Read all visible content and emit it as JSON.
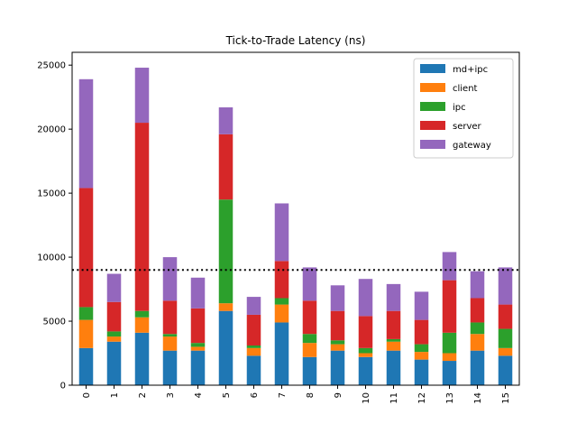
{
  "chart_data": {
    "type": "bar",
    "stacked": true,
    "title": "Tick-to-Trade Latency (ns)",
    "xlabel": "",
    "ylabel": "",
    "categories": [
      "0",
      "1",
      "2",
      "3",
      "4",
      "5",
      "6",
      "7",
      "8",
      "9",
      "10",
      "11",
      "12",
      "13",
      "14",
      "15"
    ],
    "ylim": [
      0,
      26000
    ],
    "yticks": [
      0,
      5000,
      10000,
      15000,
      20000,
      25000
    ],
    "grid": false,
    "legend_position": "top-right",
    "threshold": 9000,
    "series": [
      {
        "name": "md+ipc",
        "color": "#1f77b4",
        "values": [
          2900,
          3400,
          4100,
          2700,
          2700,
          5800,
          2300,
          4900,
          2200,
          2700,
          2200,
          2700,
          2000,
          1900,
          2700,
          2300
        ]
      },
      {
        "name": "client",
        "color": "#ff7f0e",
        "values": [
          2200,
          400,
          1200,
          1100,
          300,
          600,
          600,
          1400,
          1100,
          500,
          300,
          700,
          600,
          600,
          1300,
          600
        ]
      },
      {
        "name": "ipc",
        "color": "#2ca02c",
        "values": [
          1000,
          400,
          500,
          200,
          300,
          8100,
          200,
          500,
          700,
          300,
          400,
          200,
          600,
          1600,
          900,
          1500
        ]
      },
      {
        "name": "server",
        "color": "#d62728",
        "values": [
          9300,
          2300,
          14700,
          2600,
          2700,
          5100,
          2400,
          2900,
          2600,
          2300,
          2500,
          2200,
          1900,
          4100,
          1900,
          1900
        ]
      },
      {
        "name": "gateway",
        "color": "#9467bd",
        "values": [
          8500,
          2200,
          4300,
          3400,
          2400,
          2100,
          1400,
          4500,
          2600,
          2000,
          2900,
          2100,
          2200,
          2200,
          2100,
          2900
        ]
      }
    ]
  }
}
